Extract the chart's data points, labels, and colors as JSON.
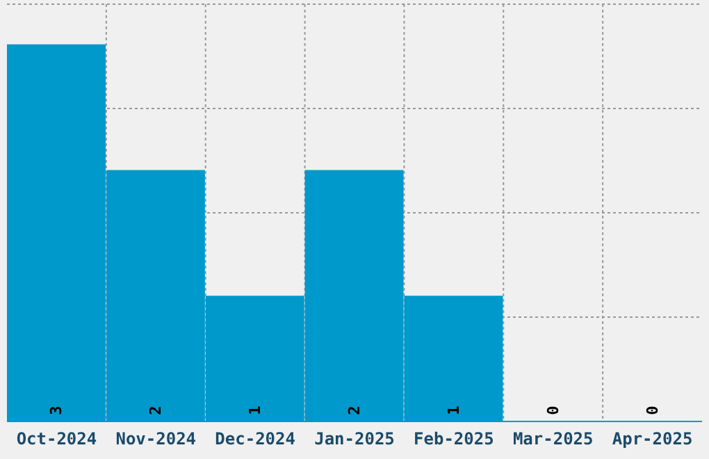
{
  "chart_data": {
    "type": "bar",
    "categories": [
      "Oct-2024",
      "Nov-2024",
      "Dec-2024",
      "Jan-2025",
      "Feb-2025",
      "Mar-2025",
      "Apr-2025"
    ],
    "values": [
      3,
      2,
      1,
      2,
      1,
      0,
      0
    ],
    "color": "#0099cc",
    "data_labels": true,
    "grid": true,
    "tick_labels": "x",
    "ylim": [
      0,
      3.32
    ],
    "yticks": [
      {
        "value": 0.83,
        "label": null
      },
      {
        "value": 1.66,
        "label": null
      },
      {
        "value": 2.49,
        "label": null
      }
    ]
  }
}
